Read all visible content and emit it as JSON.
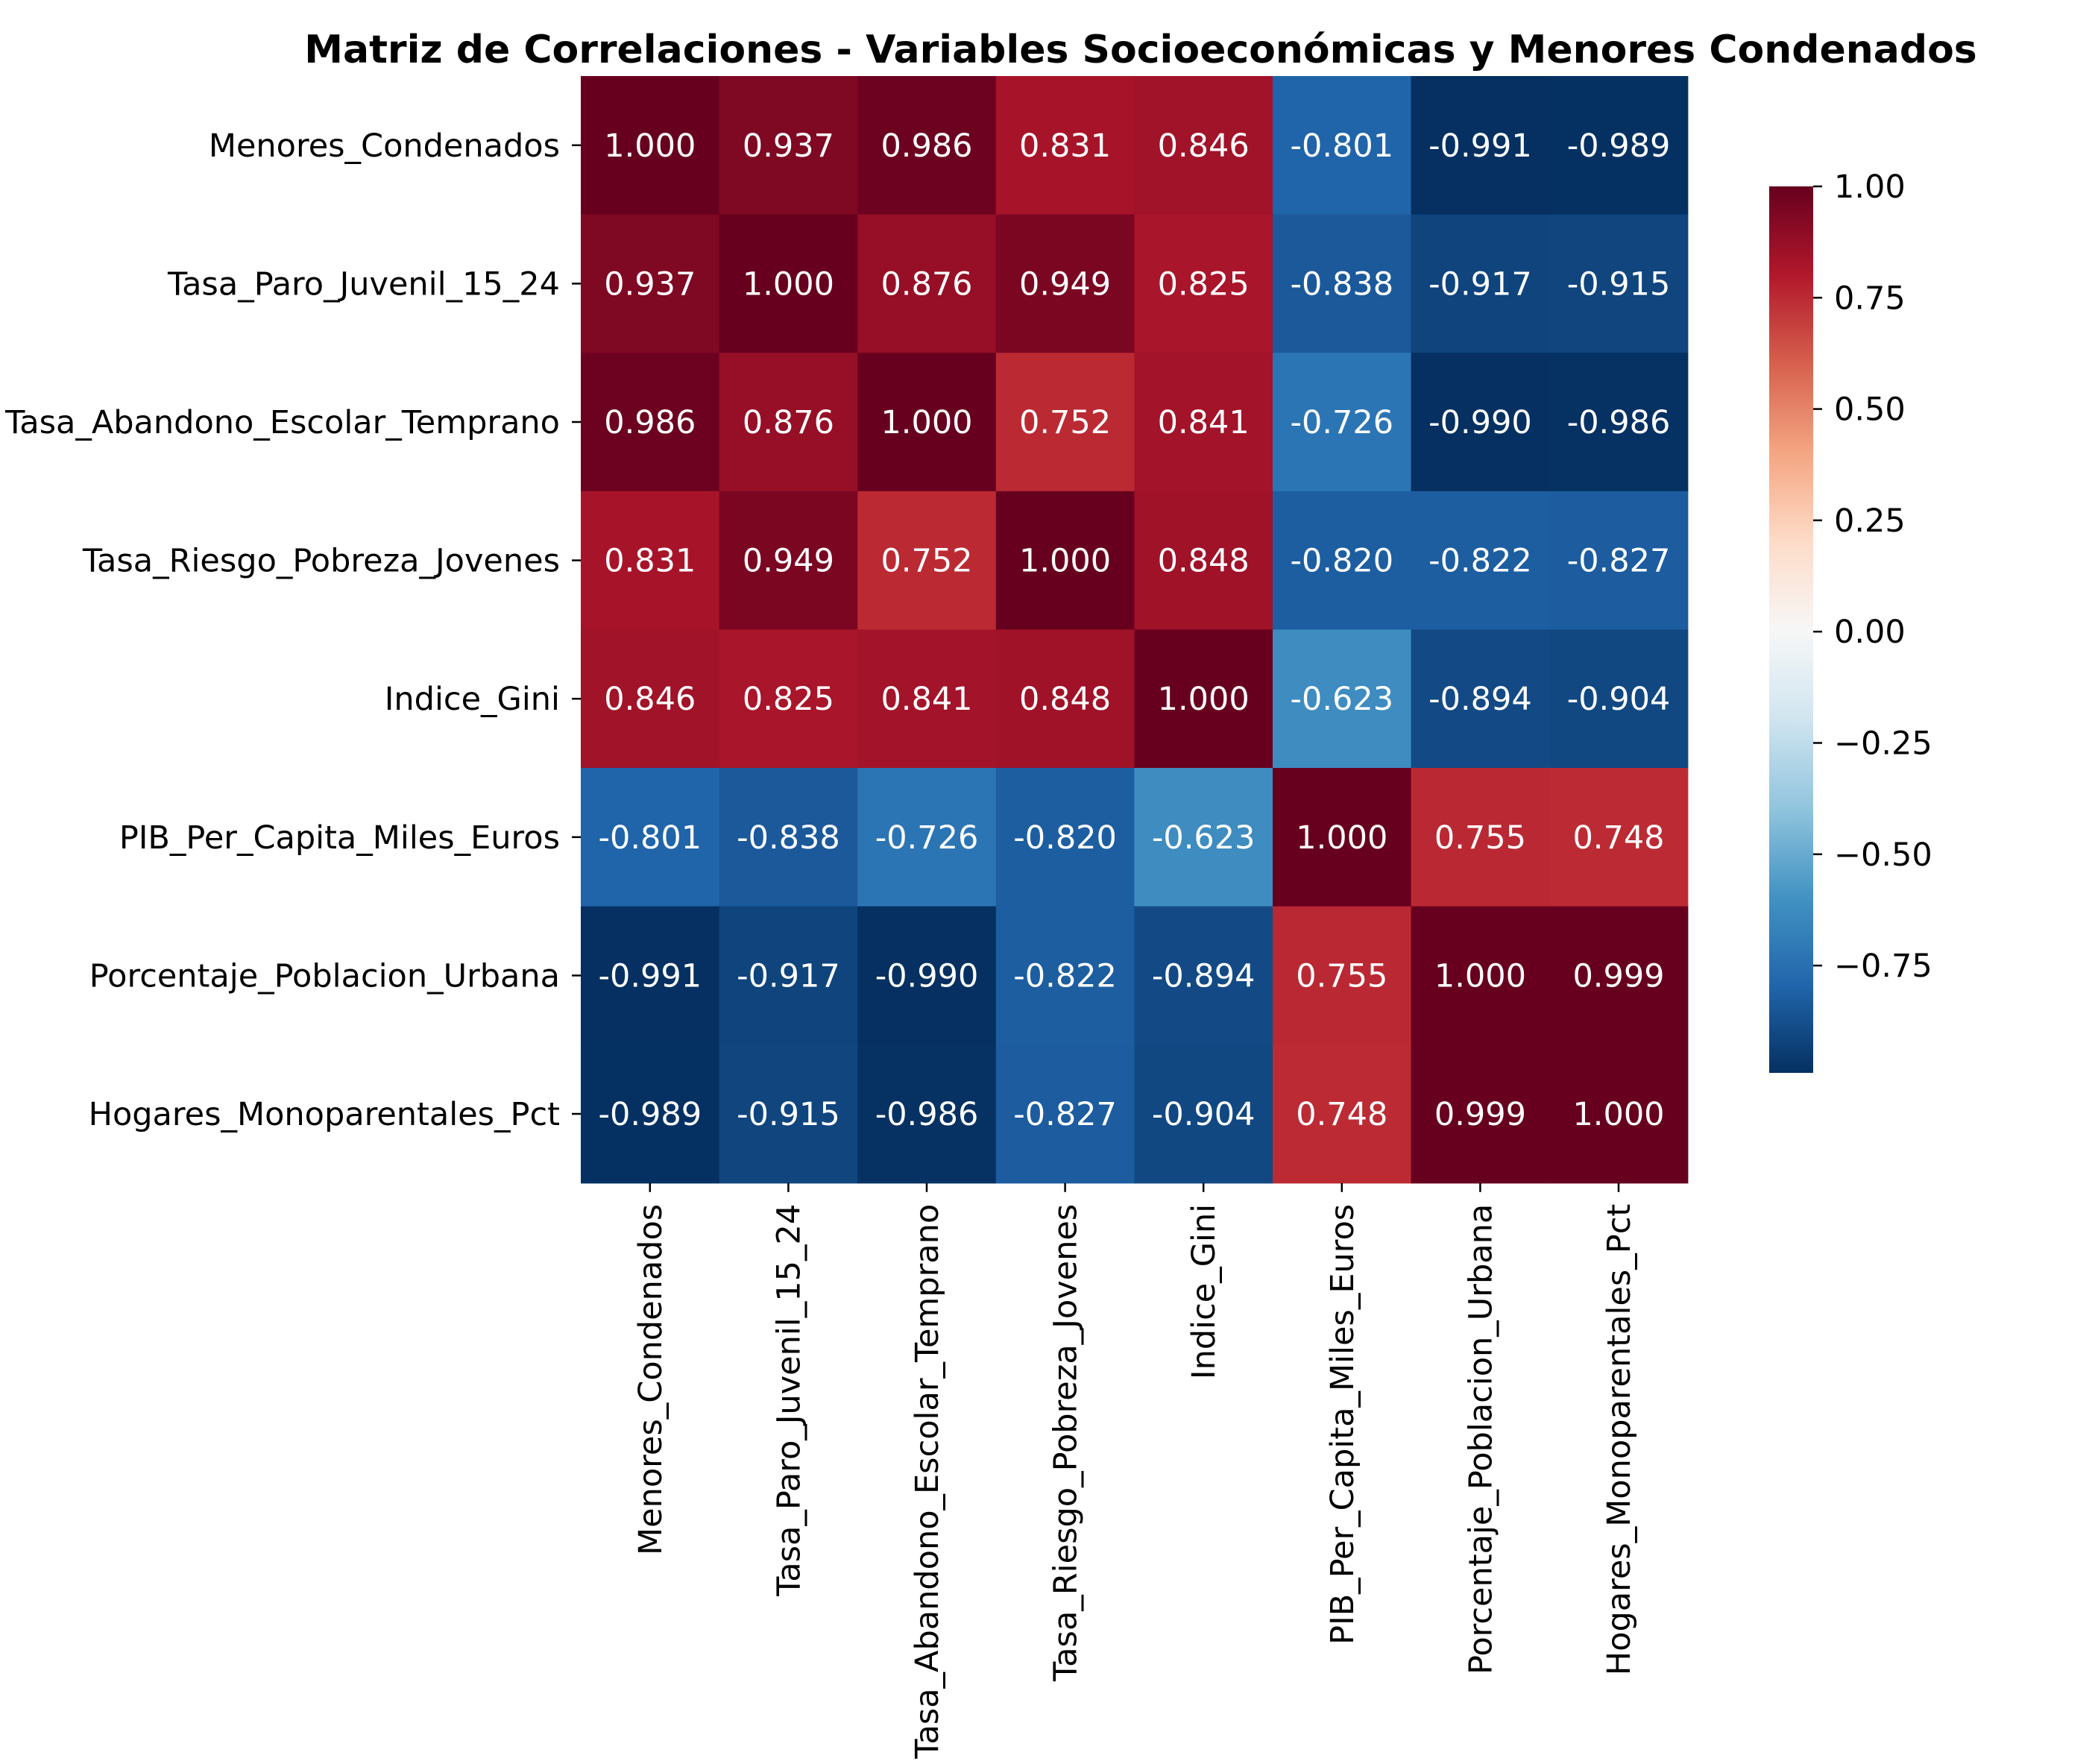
{
  "chart_data": {
    "type": "heatmap",
    "title": "Matriz de Correlaciones - Variables Socioeconómicas y Menores Condenados",
    "xlabel": "",
    "ylabel": "",
    "variables": [
      "Menores_Condenados",
      "Tasa_Paro_Juvenil_15_24",
      "Tasa_Abandono_Escolar_Temprano",
      "Tasa_Riesgo_Pobreza_Jovenes",
      "Indice_Gini",
      "PIB_Per_Capita_Miles_Euros",
      "Porcentaje_Poblacion_Urbana",
      "Hogares_Monoparentales_Pct"
    ],
    "matrix": [
      [
        1.0,
        0.937,
        0.986,
        0.831,
        0.846,
        -0.801,
        -0.991,
        -0.989
      ],
      [
        0.937,
        1.0,
        0.876,
        0.949,
        0.825,
        -0.838,
        -0.917,
        -0.915
      ],
      [
        0.986,
        0.876,
        1.0,
        0.752,
        0.841,
        -0.726,
        -0.99,
        -0.986
      ],
      [
        0.831,
        0.949,
        0.752,
        1.0,
        0.848,
        -0.82,
        -0.822,
        -0.827
      ],
      [
        0.846,
        0.825,
        0.841,
        0.848,
        1.0,
        -0.623,
        -0.894,
        -0.904
      ],
      [
        -0.801,
        -0.838,
        -0.726,
        -0.82,
        -0.623,
        1.0,
        0.755,
        0.748
      ],
      [
        -0.991,
        -0.917,
        -0.99,
        -0.822,
        -0.894,
        0.755,
        1.0,
        0.999
      ],
      [
        -0.989,
        -0.915,
        -0.986,
        -0.827,
        -0.904,
        0.748,
        0.999,
        1.0
      ]
    ],
    "annotation_format": "0.000",
    "colormap": "RdBu_r",
    "vmin": -0.991,
    "vmax": 1.0,
    "colorbar": {
      "placement": "right",
      "ticks": [
        1.0,
        0.75,
        0.5,
        0.25,
        0.0,
        -0.25,
        -0.5,
        -0.75
      ],
      "tick_labels": [
        "1.00",
        "0.75",
        "0.50",
        "0.25",
        "0.00",
        "−0.25",
        "−0.50",
        "−0.75"
      ]
    },
    "x_tick_rotation": "vertical",
    "grid": false
  }
}
